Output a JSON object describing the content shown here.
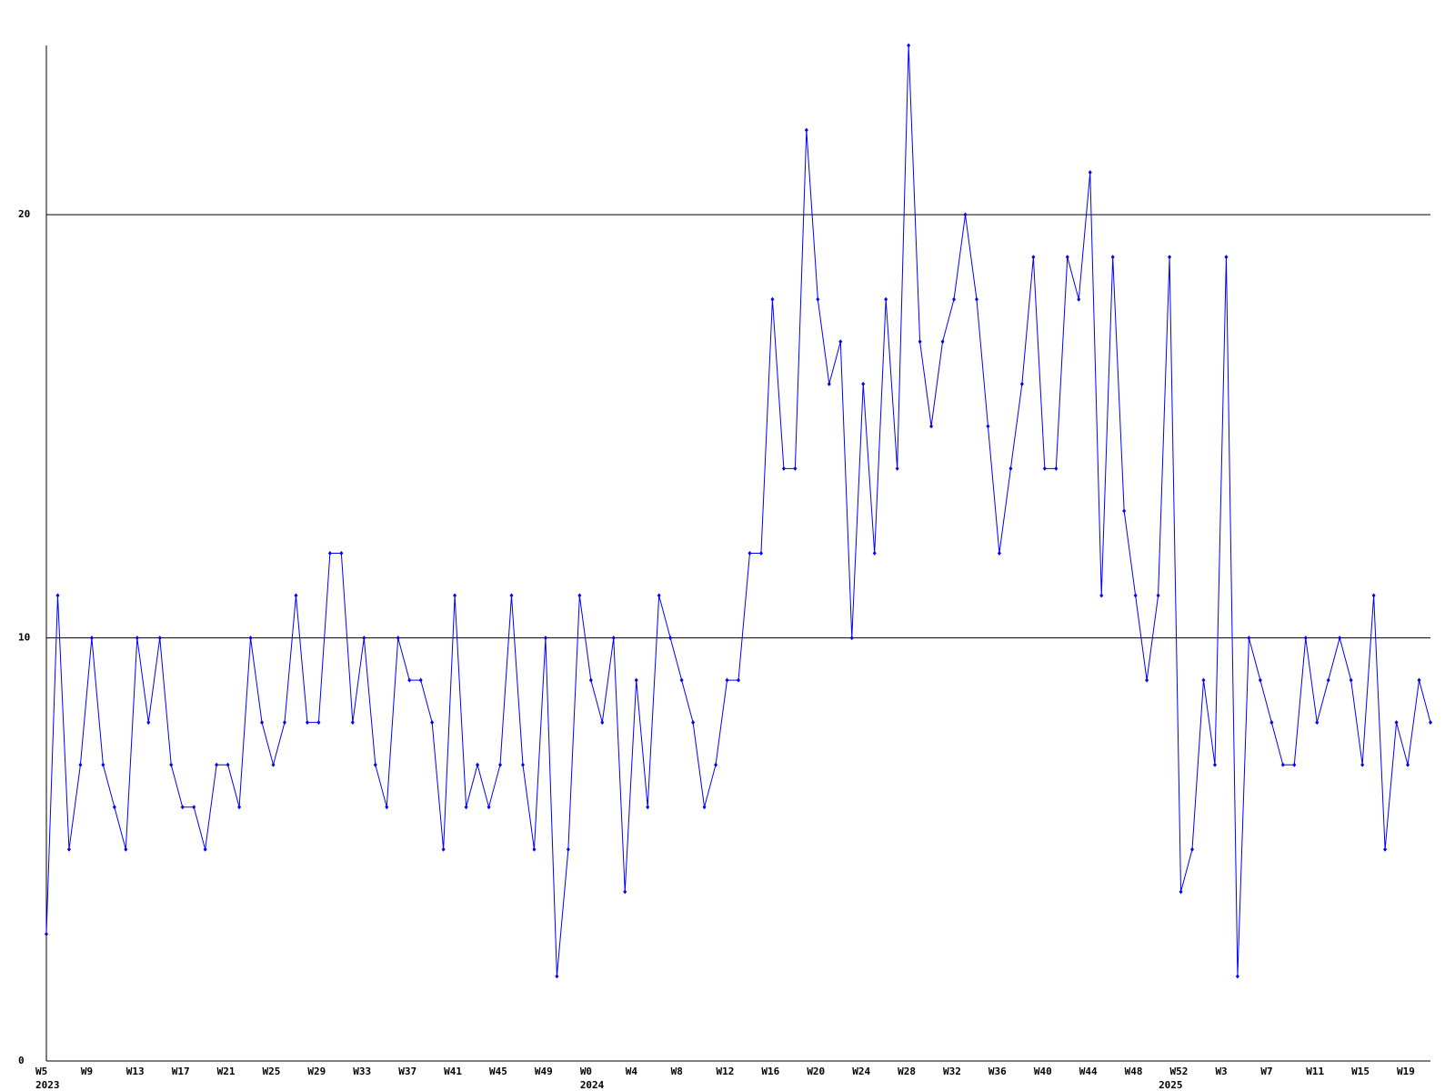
{
  "chart_data": {
    "type": "line",
    "categories": [
      "W5",
      null,
      null,
      null,
      "W9",
      null,
      null,
      null,
      "W13",
      null,
      null,
      null,
      "W17",
      null,
      null,
      null,
      "W21",
      null,
      null,
      null,
      "W25",
      null,
      null,
      null,
      "W29",
      null,
      null,
      null,
      "W33",
      null,
      null,
      null,
      "W37",
      null,
      null,
      null,
      "W41",
      null,
      null,
      null,
      "W45",
      null,
      null,
      null,
      "W49",
      null,
      null,
      null,
      "W0",
      null,
      null,
      null,
      "W4",
      null,
      null,
      null,
      "W8",
      null,
      null,
      null,
      "W12",
      null,
      null,
      null,
      "W16",
      null,
      null,
      null,
      "W20",
      null,
      null,
      null,
      "W24",
      null,
      null,
      null,
      "W28",
      null,
      null,
      null,
      "W32",
      null,
      null,
      null,
      "W36",
      null,
      null,
      null,
      "W40",
      null,
      null,
      null,
      "W44",
      null,
      null,
      null,
      "W48",
      null,
      null,
      null,
      "W52",
      null,
      null,
      null,
      "W3",
      null,
      null,
      null,
      "W7",
      null,
      null,
      null,
      "W11",
      null,
      null,
      null,
      "W15",
      null,
      null,
      null,
      "W19",
      null,
      null
    ],
    "years": [
      "2023",
      null,
      null,
      null,
      null,
      null,
      null,
      null,
      null,
      null,
      null,
      null,
      null,
      null,
      null,
      null,
      null,
      null,
      null,
      null,
      null,
      null,
      null,
      null,
      null,
      null,
      null,
      null,
      null,
      null,
      null,
      null,
      null,
      null,
      null,
      null,
      null,
      null,
      null,
      null,
      null,
      null,
      null,
      null,
      null,
      null,
      null,
      null,
      "2024",
      null,
      null,
      null,
      null,
      null,
      null,
      null,
      null,
      null,
      null,
      null,
      null,
      null,
      null,
      null,
      null,
      null,
      null,
      null,
      null,
      null,
      null,
      null,
      null,
      null,
      null,
      null,
      null,
      null,
      null,
      null,
      null,
      null,
      null,
      null,
      null,
      null,
      null,
      null,
      null,
      null,
      null,
      null,
      null,
      null,
      null,
      null,
      null,
      null,
      null,
      "2025",
      null,
      null,
      null,
      null,
      null,
      null,
      null,
      null,
      null,
      null,
      null,
      null,
      null,
      null,
      null,
      null,
      null,
      null,
      null,
      null,
      null
    ],
    "series": [
      {
        "color": "#0000ff",
        "values": [
          3,
          11,
          5,
          7,
          10,
          7,
          6,
          5,
          10,
          8,
          10,
          7,
          6,
          6,
          5,
          7,
          7,
          6,
          10,
          8,
          7,
          8,
          11,
          8,
          8,
          12,
          12,
          8,
          10,
          7,
          6,
          10,
          9,
          9,
          8,
          5,
          11,
          6,
          7,
          6,
          7,
          11,
          7,
          5,
          10,
          2,
          5,
          11,
          9,
          8,
          10,
          4,
          9,
          6,
          11,
          10,
          9,
          8,
          6,
          7,
          9,
          9,
          12,
          12,
          18,
          14,
          14,
          22,
          18,
          16,
          17,
          10,
          16,
          12,
          18,
          14,
          24,
          17,
          15,
          17,
          18,
          20,
          18,
          15,
          12,
          14,
          16,
          19,
          14,
          14,
          19,
          18,
          21,
          11,
          19,
          13,
          11,
          9,
          11,
          19,
          4,
          5,
          9,
          7,
          19,
          2,
          10,
          9,
          8,
          7,
          7,
          10,
          8,
          9,
          10,
          9,
          7,
          11,
          5,
          8,
          7,
          9,
          8
        ]
      }
    ],
    "ylim": [
      0,
      24
    ],
    "yticks": [
      0,
      10,
      20
    ],
    "grid": true
  }
}
